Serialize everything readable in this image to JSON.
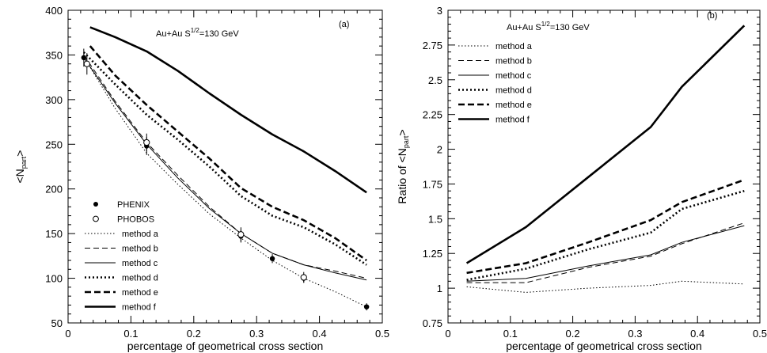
{
  "chart_data": [
    {
      "type": "line",
      "panel_label": "(a)",
      "title_system": "Au+Au",
      "title_energy": "S",
      "title_energy_sup": "1/2",
      "title_energy_value": "=130 GeV",
      "xlabel": "percentage of geometrical cross section",
      "ylabel_prefix": "<N",
      "ylabel_sub": "part",
      "ylabel_suffix": ">",
      "xlim": [
        0,
        0.5
      ],
      "ylim": [
        50,
        400
      ],
      "xticks": [
        0,
        0.1,
        0.2,
        0.3,
        0.4,
        0.5
      ],
      "xtick_labels": [
        "0",
        "0.1",
        "0.2",
        "0.3",
        "0.4",
        "0.5"
      ],
      "yticks": [
        50,
        100,
        150,
        200,
        250,
        300,
        350,
        400
      ],
      "ytick_labels": [
        "50",
        "100",
        "150",
        "200",
        "250",
        "300",
        "350",
        "400"
      ],
      "legend": {
        "position": "bottom-left"
      },
      "points": [
        {
          "name": "PHENIX",
          "marker": "filled-circle",
          "x": [
            0.025,
            0.125,
            0.275,
            0.325,
            0.375,
            0.475
          ],
          "y": [
            347,
            248,
            147,
            122,
            100,
            68
          ],
          "err": [
            10,
            10,
            7,
            5,
            5,
            4
          ]
        },
        {
          "name": "PHOBOS",
          "marker": "open-circle",
          "x": [
            0.03,
            0.125,
            0.275,
            0.375
          ],
          "y": [
            340,
            252,
            149,
            101
          ],
          "err": [
            12,
            10,
            8,
            6
          ]
        }
      ],
      "series": [
        {
          "name": "method a",
          "style": "dotted-thin",
          "x": [
            0.025,
            0.075,
            0.125,
            0.175,
            0.225,
            0.275,
            0.325,
            0.375,
            0.425,
            0.475
          ],
          "y": [
            348,
            290,
            240,
            205,
            172,
            145,
            120,
            100,
            85,
            68
          ]
        },
        {
          "name": "method b",
          "style": "dashed-thin",
          "x": [
            0.025,
            0.075,
            0.125,
            0.175,
            0.225,
            0.275,
            0.325,
            0.375,
            0.425,
            0.475
          ],
          "y": [
            350,
            298,
            252,
            215,
            180,
            150,
            128,
            115,
            108,
            100
          ]
        },
        {
          "name": "method c",
          "style": "solid-thin",
          "x": [
            0.025,
            0.075,
            0.125,
            0.175,
            0.225,
            0.275,
            0.325,
            0.375,
            0.425,
            0.475
          ],
          "y": [
            347,
            296,
            250,
            212,
            178,
            150,
            128,
            115,
            106,
            98
          ]
        },
        {
          "name": "method d",
          "style": "dotted-thick",
          "x": [
            0.025,
            0.075,
            0.125,
            0.175,
            0.225,
            0.275,
            0.325,
            0.375,
            0.425,
            0.475
          ],
          "y": [
            353,
            317,
            283,
            255,
            225,
            192,
            170,
            157,
            138,
            115
          ]
        },
        {
          "name": "method e",
          "style": "dashed-thick",
          "x": [
            0.035,
            0.075,
            0.125,
            0.175,
            0.225,
            0.275,
            0.325,
            0.375,
            0.425,
            0.475
          ],
          "y": [
            360,
            327,
            294,
            264,
            234,
            201,
            180,
            165,
            145,
            120
          ]
        },
        {
          "name": "method f",
          "style": "solid-thick",
          "x": [
            0.035,
            0.075,
            0.125,
            0.175,
            0.225,
            0.275,
            0.325,
            0.375,
            0.425,
            0.475
          ],
          "y": [
            381,
            370,
            354,
            332,
            307,
            283,
            261,
            242,
            220,
            196
          ]
        }
      ]
    },
    {
      "type": "line",
      "panel_label": "(b)",
      "title_system": "Au+Au",
      "title_energy": "S",
      "title_energy_sup": "1/2",
      "title_energy_value": "=130 GeV",
      "xlabel": "percentage of geometrical cross section",
      "ylabel_prefix": "Ratio of <N",
      "ylabel_sub": "part",
      "ylabel_suffix": ">",
      "xlim": [
        0,
        0.5
      ],
      "ylim": [
        0.75,
        3
      ],
      "xticks": [
        0,
        0.1,
        0.2,
        0.3,
        0.4,
        0.5
      ],
      "xtick_labels": [
        "0",
        "0.1",
        "0.2",
        "0.3",
        "0.4",
        "0.5"
      ],
      "yticks": [
        0.75,
        1,
        1.25,
        1.5,
        1.75,
        2,
        2.25,
        2.5,
        2.75,
        3
      ],
      "ytick_labels": [
        "0.75",
        "1",
        "1.25",
        "1.5",
        "1.75",
        "2",
        "2.25",
        "2.5",
        "2.75",
        "3"
      ],
      "legend": {
        "position": "top-left"
      },
      "series": [
        {
          "name": "method a",
          "style": "dotted-thin",
          "x": [
            0.03,
            0.125,
            0.225,
            0.325,
            0.375,
            0.475
          ],
          "y": [
            1.01,
            0.97,
            1.0,
            1.02,
            1.05,
            1.03
          ]
        },
        {
          "name": "method b",
          "style": "dashed-thin",
          "x": [
            0.03,
            0.125,
            0.225,
            0.325,
            0.375,
            0.475
          ],
          "y": [
            1.04,
            1.04,
            1.15,
            1.23,
            1.32,
            1.47
          ]
        },
        {
          "name": "method c",
          "style": "solid-thin",
          "x": [
            0.03,
            0.125,
            0.225,
            0.325,
            0.375,
            0.475
          ],
          "y": [
            1.05,
            1.07,
            1.16,
            1.24,
            1.33,
            1.45
          ]
        },
        {
          "name": "method d",
          "style": "dotted-thick",
          "x": [
            0.03,
            0.125,
            0.225,
            0.325,
            0.375,
            0.475
          ],
          "y": [
            1.06,
            1.14,
            1.28,
            1.4,
            1.57,
            1.7
          ]
        },
        {
          "name": "method e",
          "style": "dashed-thick",
          "x": [
            0.03,
            0.125,
            0.225,
            0.325,
            0.375,
            0.475
          ],
          "y": [
            1.11,
            1.18,
            1.33,
            1.49,
            1.62,
            1.78
          ]
        },
        {
          "name": "method f",
          "style": "solid-thick",
          "x": [
            0.03,
            0.125,
            0.225,
            0.325,
            0.375,
            0.475
          ],
          "y": [
            1.18,
            1.44,
            1.8,
            2.16,
            2.45,
            2.89
          ]
        }
      ]
    }
  ]
}
